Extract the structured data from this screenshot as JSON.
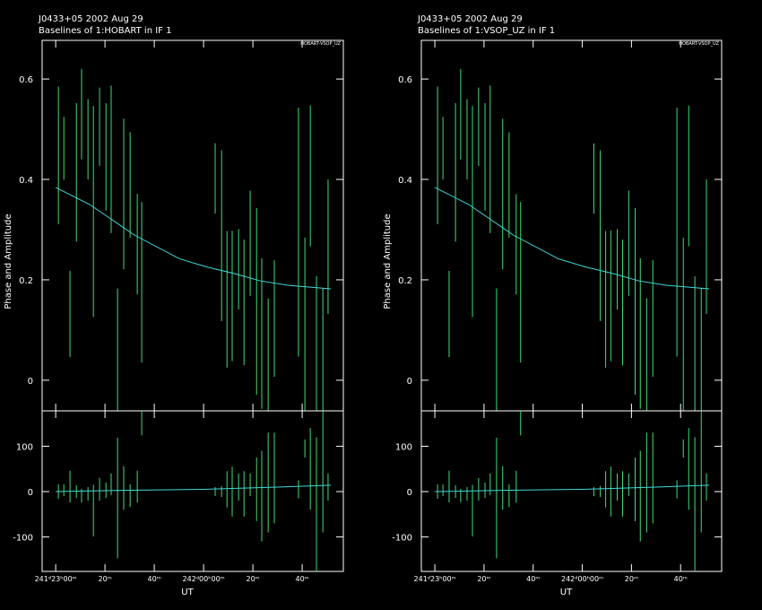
{
  "chart_data": [
    {
      "type": "errorbar",
      "title": "J0433+05  2002 Aug 29",
      "subtitle": "Baselines of 1:HOBART in IF 1",
      "annotation": "HOBART-VSOP_UZ",
      "xlabel": "UT",
      "ylabel": "Phase and Amplitude",
      "xlim": [
        -5.5,
        116.7
      ],
      "xticks": [
        {
          "value": 0,
          "label": "241ᵈ23ʰ00ᵐ"
        },
        {
          "value": 20,
          "label": "20ᵐ"
        },
        {
          "value": 40,
          "label": "40ᵐ"
        },
        {
          "value": 60,
          "label": "242ᵈ00ʰ00ᵐ"
        },
        {
          "value": 80,
          "label": "20ᵐ"
        },
        {
          "value": 100,
          "label": "40ᵐ"
        }
      ],
      "panels": [
        {
          "ylim": [
            -0.061,
            0.677
          ],
          "yticks": [
            0,
            0.2,
            0.4,
            0.6
          ],
          "points": {
            "color": "#3fdc7a",
            "x": [
              1.1,
              3.3,
              5.8,
              8.4,
              10.5,
              13.1,
              15.3,
              17.8,
              20.4,
              22.5,
              25.1,
              27.6,
              30.2,
              33.1,
              34.9,
              64.7,
              67.3,
              69.5,
              71.6,
              74.2,
              76.4,
              78.9,
              81.5,
              83.6,
              86.2,
              88.7,
              98.5,
              101.1,
              103.3,
              105.8,
              108.4,
              110.5
            ],
            "values": [
              0.448,
              0.462,
              0.132,
              0.414,
              0.53,
              0.48,
              0.336,
              0.505,
              0.445,
              0.44,
              0.043,
              0.371,
              0.389,
              0.271,
              0.195,
              0.402,
              0.288,
              0.161,
              0.168,
              0.221,
              0.155,
              0.273,
              0.157,
              0.093,
              0.043,
              0.123,
              0.295,
              0.084,
              0.407,
              0.062,
              0.043,
              0.266
            ],
            "errors": [
              0.137,
              0.0625,
              0.086,
              0.138,
              0.09,
              0.08,
              0.21,
              0.078,
              0.107,
              0.147,
              0.14,
              0.15,
              0.105,
              0.1,
              0.16,
              0.07,
              0.17,
              0.136,
              0.13,
              0.08,
              0.125,
              0.105,
              0.186,
              0.15,
              0.12,
              0.116,
              0.248,
              0.2,
              0.14,
              0.145,
              0.14,
              0.134
            ]
          },
          "model": {
            "color": "#40d8d8",
            "x": [
              0,
              13.8,
              32,
              50.2,
              61,
              72,
              83,
              94.5,
              111.6
            ],
            "values": [
              0.384,
              0.35,
              0.289,
              0.242,
              0.226,
              0.213,
              0.198,
              0.189,
              0.182
            ]
          }
        },
        {
          "ylim": [
            -176,
            178
          ],
          "yticks": [
            -100,
            0,
            100
          ],
          "points": {
            "color": "#3fdc7a",
            "x": [
              1.1,
              3.3,
              5.8,
              8.4,
              10.5,
              13.1,
              15.3,
              17.8,
              20.4,
              22.5,
              25.1,
              27.6,
              30.2,
              33.1,
              34.9,
              64.7,
              67.3,
              69.5,
              71.6,
              74.2,
              76.4,
              78.9,
              81.5,
              83.6,
              86.2,
              88.7,
              98.5,
              101.1,
              103.3,
              105.8,
              108.4,
              110.5
            ],
            "values": [
              0,
              3,
              11,
              0,
              -9,
              -5,
              -42,
              5,
              3,
              16,
              -14,
              8,
              -9,
              11,
              151,
              0,
              0,
              5,
              0,
              10,
              -5,
              15,
              5,
              -10,
              20,
              30,
              5,
              95,
              50,
              -30,
              60,
              10
            ],
            "errors": [
              16,
              13,
              35,
              14,
              15,
              15,
              57,
              25,
              17,
              24,
              133,
              48,
              25,
              35,
              27,
              10,
              12,
              40,
              55,
              30,
              50,
              25,
              70,
              100,
              110,
              100,
              20,
              20,
              90,
              150,
              150,
              30
            ]
          },
          "model": {
            "color": "#40d8d8",
            "x": [
              0,
              30,
              60,
              90,
              111.6
            ],
            "values": [
              0,
              3,
              5,
              10,
              14
            ]
          }
        }
      ]
    },
    {
      "type": "errorbar",
      "title": "J0433+05  2002 Aug 29",
      "subtitle": "Baselines of 1:VSOP_UZ in IF 1",
      "annotation": "HOBART-VSOP_UZ",
      "xlabel": "UT",
      "ylabel": "Phase and Amplitude",
      "xlim": [
        -5.5,
        116.7
      ],
      "xticks": [
        {
          "value": 0,
          "label": "241ᵈ23ʰ00ᵐ"
        },
        {
          "value": 20,
          "label": "20ᵐ"
        },
        {
          "value": 40,
          "label": "40ᵐ"
        },
        {
          "value": 60,
          "label": "242ᵈ00ʰ00ᵐ"
        },
        {
          "value": 80,
          "label": "20ᵐ"
        },
        {
          "value": 100,
          "label": "40ᵐ"
        }
      ],
      "panels": [
        {
          "ylim": [
            -0.061,
            0.677
          ],
          "yticks": [
            0,
            0.2,
            0.4,
            0.6
          ],
          "points": {
            "color": "#3fdc7a",
            "x": [
              1.1,
              3.3,
              5.8,
              8.4,
              10.5,
              13.1,
              15.3,
              17.8,
              20.4,
              22.5,
              25.1,
              27.6,
              30.2,
              33.1,
              34.9,
              64.7,
              67.3,
              69.5,
              71.6,
              74.2,
              76.4,
              78.9,
              81.5,
              83.6,
              86.2,
              88.7,
              98.5,
              101.1,
              103.3,
              105.8,
              108.4,
              110.5
            ],
            "values": [
              0.448,
              0.462,
              0.132,
              0.414,
              0.53,
              0.48,
              0.336,
              0.505,
              0.445,
              0.44,
              0.043,
              0.371,
              0.389,
              0.271,
              0.195,
              0.402,
              0.288,
              0.161,
              0.168,
              0.221,
              0.155,
              0.273,
              0.157,
              0.093,
              0.043,
              0.123,
              0.295,
              0.084,
              0.407,
              0.062,
              0.043,
              0.266
            ],
            "errors": [
              0.137,
              0.0625,
              0.086,
              0.138,
              0.09,
              0.08,
              0.21,
              0.078,
              0.107,
              0.147,
              0.14,
              0.15,
              0.105,
              0.1,
              0.16,
              0.07,
              0.17,
              0.136,
              0.13,
              0.08,
              0.125,
              0.105,
              0.186,
              0.15,
              0.12,
              0.116,
              0.248,
              0.2,
              0.14,
              0.145,
              0.14,
              0.134
            ]
          },
          "model": {
            "color": "#40d8d8",
            "x": [
              0,
              13.8,
              32,
              50.2,
              61,
              72,
              83,
              94.5,
              111.6
            ],
            "values": [
              0.384,
              0.35,
              0.289,
              0.242,
              0.226,
              0.213,
              0.198,
              0.189,
              0.182
            ]
          }
        },
        {
          "ylim": [
            -176,
            178
          ],
          "yticks": [
            -100,
            0,
            100
          ],
          "points": {
            "color": "#3fdc7a",
            "x": [
              1.1,
              3.3,
              5.8,
              8.4,
              10.5,
              13.1,
              15.3,
              17.8,
              20.4,
              22.5,
              25.1,
              27.6,
              30.2,
              33.1,
              34.9,
              64.7,
              67.3,
              69.5,
              71.6,
              74.2,
              76.4,
              78.9,
              81.5,
              83.6,
              86.2,
              88.7,
              98.5,
              101.1,
              103.3,
              105.8,
              108.4,
              110.5
            ],
            "values": [
              0,
              3,
              11,
              0,
              -9,
              -5,
              -42,
              5,
              3,
              16,
              -14,
              8,
              -9,
              11,
              151,
              0,
              0,
              5,
              0,
              10,
              -5,
              15,
              5,
              -10,
              20,
              30,
              5,
              95,
              50,
              -30,
              60,
              10
            ],
            "errors": [
              16,
              13,
              35,
              14,
              15,
              15,
              57,
              25,
              17,
              24,
              133,
              48,
              25,
              35,
              27,
              10,
              12,
              40,
              55,
              30,
              50,
              25,
              70,
              100,
              110,
              100,
              20,
              20,
              90,
              150,
              150,
              30
            ]
          },
          "model": {
            "color": "#40d8d8",
            "x": [
              0,
              30,
              60,
              90,
              111.6
            ],
            "values": [
              0,
              3,
              5,
              10,
              14
            ]
          }
        }
      ]
    }
  ]
}
